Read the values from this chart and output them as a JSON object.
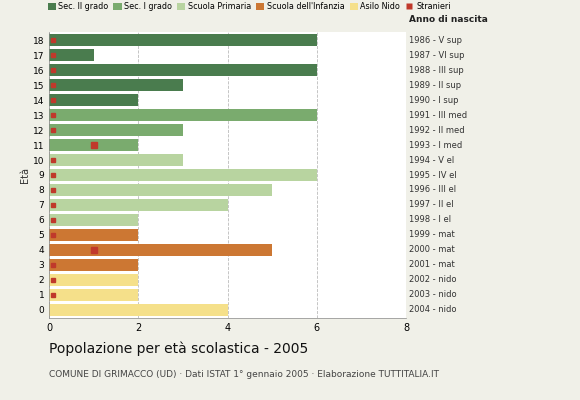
{
  "ages": [
    18,
    17,
    16,
    15,
    14,
    13,
    12,
    11,
    10,
    9,
    8,
    7,
    6,
    5,
    4,
    3,
    2,
    1,
    0
  ],
  "values": [
    6,
    1,
    6,
    3,
    2,
    6,
    3,
    2,
    3,
    6,
    5,
    4,
    2,
    2,
    5,
    2,
    2,
    2,
    4
  ],
  "bar_colors_by_age": {
    "18": "#4a7c4e",
    "17": "#4a7c4e",
    "16": "#4a7c4e",
    "15": "#4a7c4e",
    "14": "#4a7c4e",
    "13": "#7aab6e",
    "12": "#7aab6e",
    "11": "#7aab6e",
    "10": "#b8d4a0",
    "9": "#b8d4a0",
    "8": "#b8d4a0",
    "7": "#b8d4a0",
    "6": "#b8d4a0",
    "5": "#cc7733",
    "4": "#cc7733",
    "3": "#cc7733",
    "2": "#f5e08a",
    "1": "#f5e08a",
    "0": "#f5e08a"
  },
  "legend_labels": [
    "Sec. II grado",
    "Sec. I grado",
    "Scuola Primaria",
    "Scuola dell'Infanzia",
    "Asilo Nido",
    "Stranieri"
  ],
  "legend_colors": [
    "#4a7c4e",
    "#7aab6e",
    "#b8d4a0",
    "#cc7733",
    "#f5e08a",
    "#c0392b"
  ],
  "stranieri_at_zero": [
    18,
    17,
    16,
    15,
    14,
    13,
    12,
    10,
    9,
    8,
    7,
    6,
    5,
    3,
    2,
    1
  ],
  "stranieri_at_one": [
    11,
    4
  ],
  "right_labels": {
    "18": "1986 - V sup",
    "17": "1987 - VI sup",
    "16": "1988 - III sup",
    "15": "1989 - II sup",
    "14": "1990 - I sup",
    "13": "1991 - III med",
    "12": "1992 - II med",
    "11": "1993 - I med",
    "10": "1994 - V el",
    "9": "1995 - IV el",
    "8": "1996 - III el",
    "7": "1997 - II el",
    "6": "1998 - I el",
    "5": "1999 - mat",
    "4": "2000 - mat",
    "3": "2001 - mat",
    "2": "2002 - nido",
    "1": "2003 - nido",
    "0": "2004 - nido"
  },
  "title": "Popolazione per età scolastica - 2005",
  "subtitle": "COMUNE DI GRIMACCO (UD) · Dati ISTAT 1° gennaio 2005 · Elaborazione TUTTITALIA.IT",
  "ylabel_eta": "Età",
  "label_anno": "Anno di nascita",
  "xlim": [
    0,
    8
  ],
  "xticks": [
    0,
    2,
    4,
    6,
    8
  ],
  "bg_color": "#f0f0e8",
  "bar_bg_color": "#ffffff",
  "stranieri_color": "#c0392b",
  "grid_color": "#bbbbbb",
  "title_fontsize": 10,
  "subtitle_fontsize": 6.5
}
